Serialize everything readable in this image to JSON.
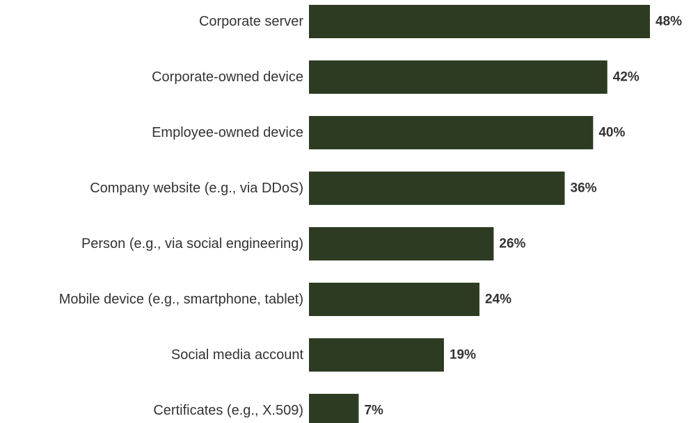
{
  "chart_data": {
    "type": "bar",
    "orientation": "horizontal",
    "categories": [
      "Corporate server",
      "Corporate-owned device",
      "Employee-owned device",
      "Company website (e.g., via DDoS)",
      "Person (e.g., via social engineering)",
      "Mobile device (e.g., smartphone, tablet)",
      "Social media account",
      "Certificates (e.g., X.509)"
    ],
    "values": [
      48,
      42,
      40,
      36,
      26,
      24,
      19,
      7
    ],
    "value_labels": [
      "48%",
      "42%",
      "40%",
      "36%",
      "26%",
      "24%",
      "19%",
      "7%"
    ],
    "xlim": [
      0,
      48
    ],
    "bar_color": "#2d3b22",
    "grid": false,
    "legend": "none"
  }
}
